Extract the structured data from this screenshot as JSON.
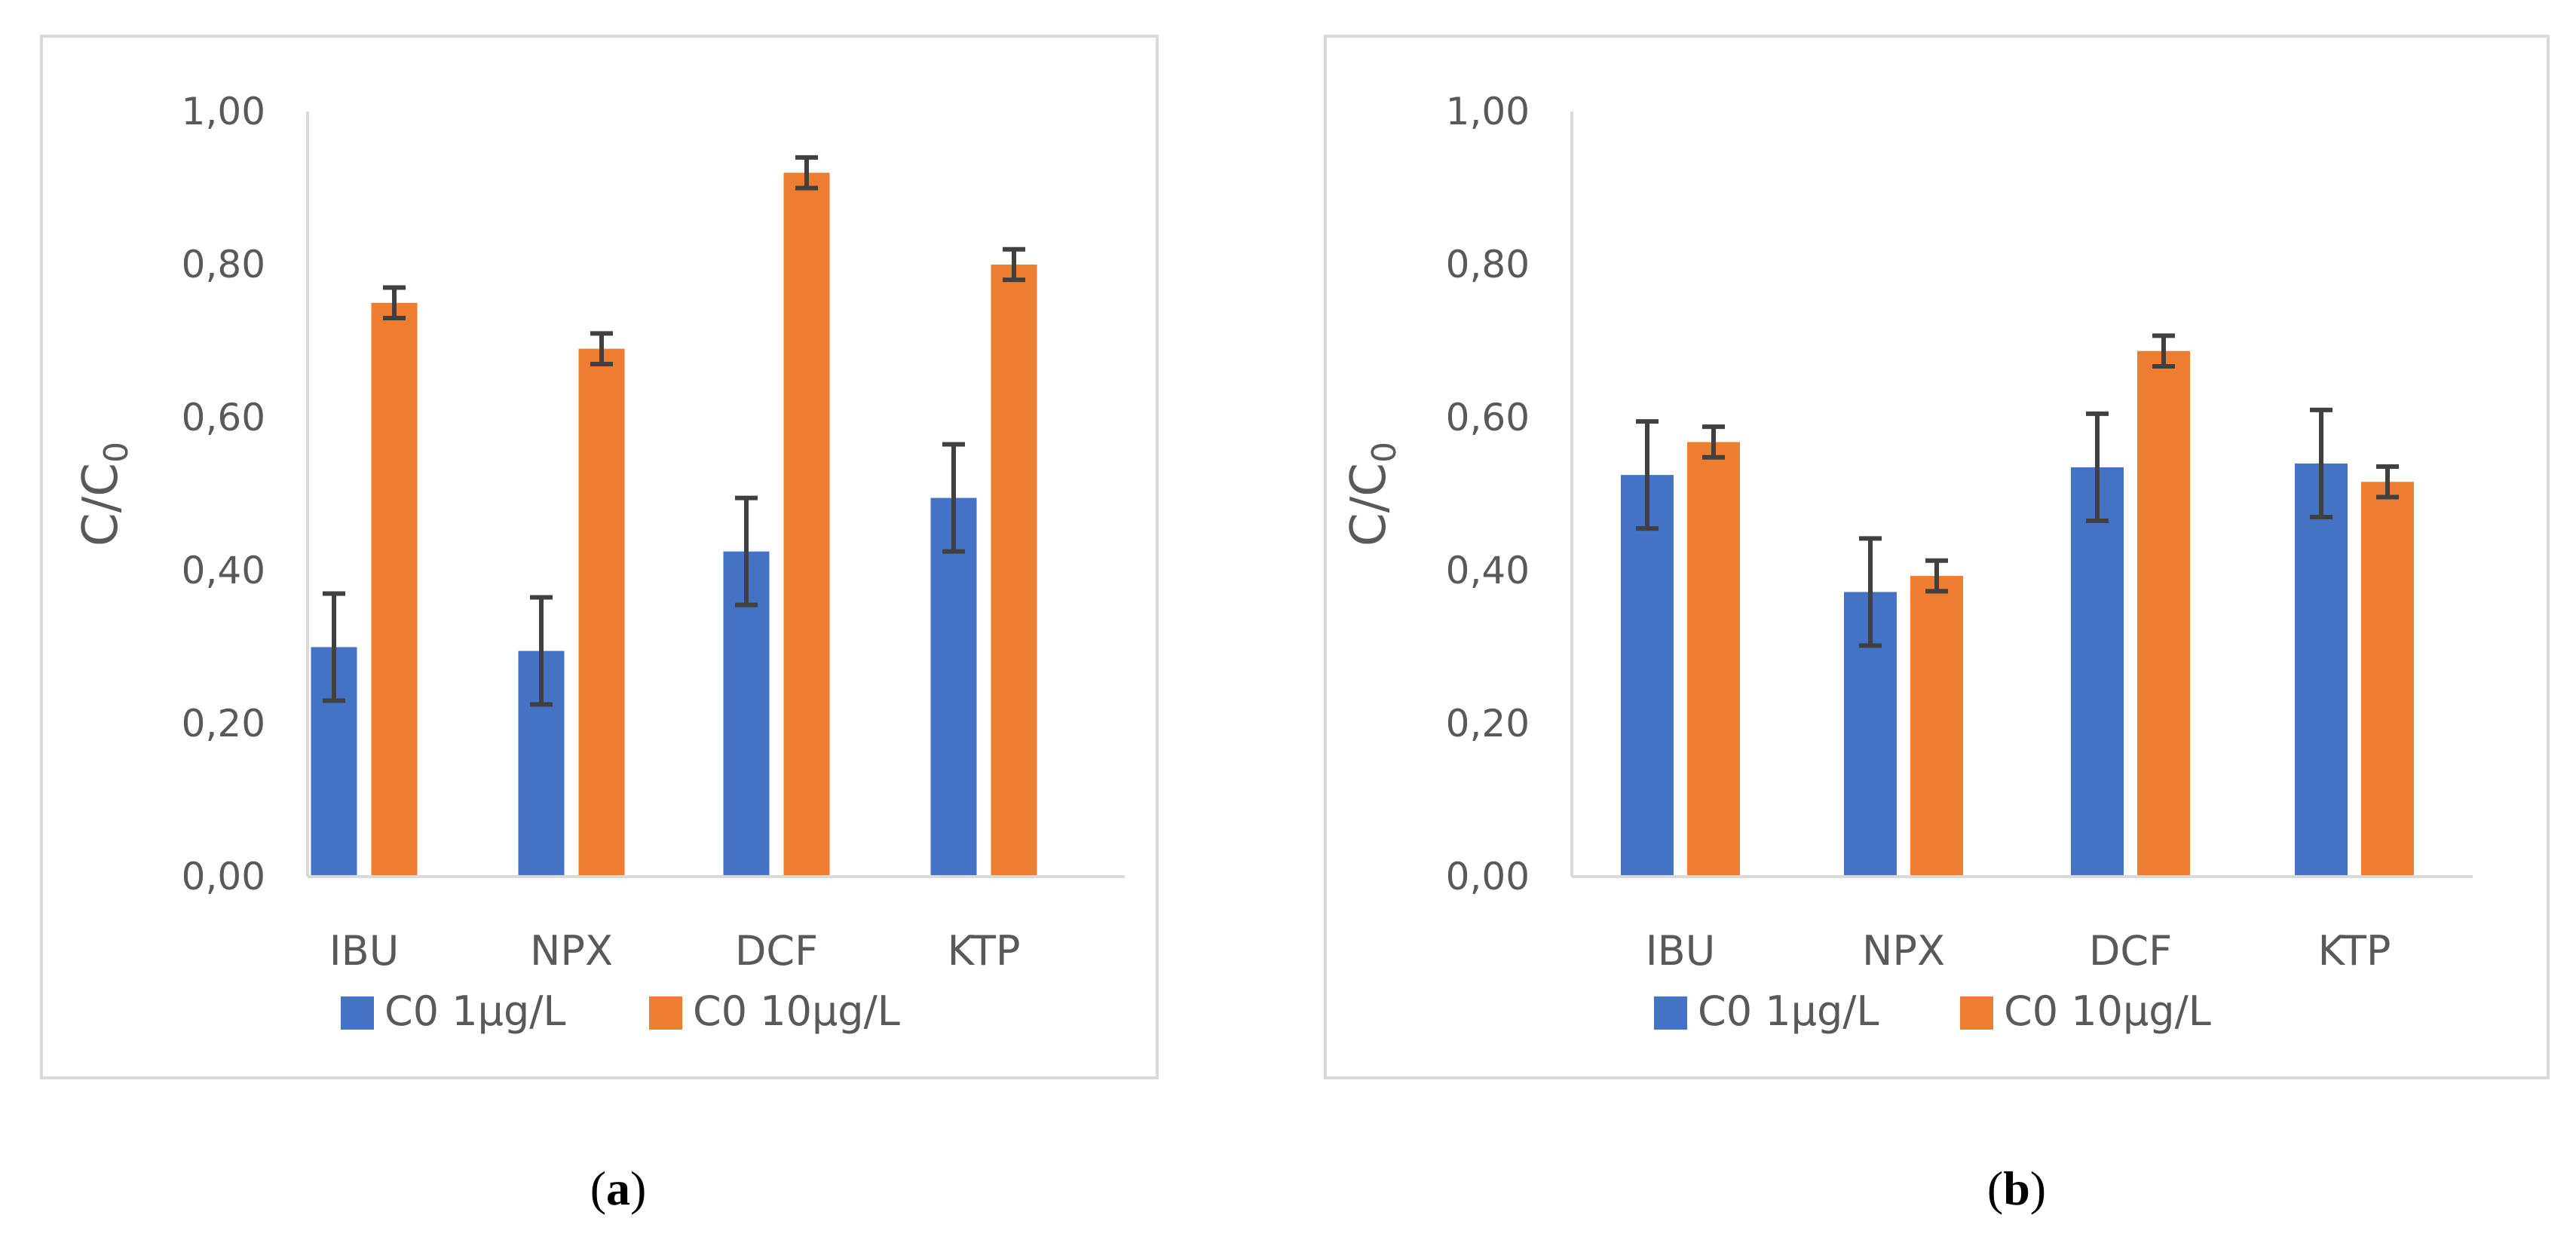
{
  "chart_data": [
    {
      "type": "bar",
      "panel_label": "a",
      "ylabel_main": "C/C",
      "ylabel_sub": "0",
      "ylim": [
        0,
        1.0
      ],
      "yticks": [
        "0,00",
        "0,20",
        "0,40",
        "0,60",
        "0,80",
        "1,00"
      ],
      "categories": [
        "IBU",
        "NPX",
        "DCF",
        "KTP"
      ],
      "series": [
        {
          "name": "C0 1µg/L",
          "color": "#4472C4",
          "values": [
            0.3,
            0.295,
            0.425,
            0.495
          ],
          "errors": [
            0.07,
            0.07,
            0.07,
            0.07
          ]
        },
        {
          "name": "C0 10µg/L",
          "color": "#ED7D31",
          "values": [
            0.75,
            0.69,
            0.92,
            0.8
          ],
          "errors": [
            0.02,
            0.02,
            0.02,
            0.02
          ]
        }
      ],
      "legend_position": "bottom"
    },
    {
      "type": "bar",
      "panel_label": "b",
      "ylabel_main": "C/C",
      "ylabel_sub": "0",
      "ylim": [
        0,
        1.0
      ],
      "yticks": [
        "0,00",
        "0,20",
        "0,40",
        "0,60",
        "0,80",
        "1,00"
      ],
      "categories": [
        "IBU",
        "NPX",
        "DCF",
        "KTP"
      ],
      "series": [
        {
          "name": "C0 1µg/L",
          "color": "#4472C4",
          "values": [
            0.525,
            0.372,
            0.535,
            0.54
          ],
          "errors": [
            0.07,
            0.07,
            0.07,
            0.07
          ]
        },
        {
          "name": "C0 10µg/L",
          "color": "#ED7D31",
          "values": [
            0.568,
            0.393,
            0.687,
            0.516
          ],
          "errors": [
            0.02,
            0.02,
            0.02,
            0.02
          ]
        }
      ],
      "legend_position": "bottom"
    }
  ]
}
